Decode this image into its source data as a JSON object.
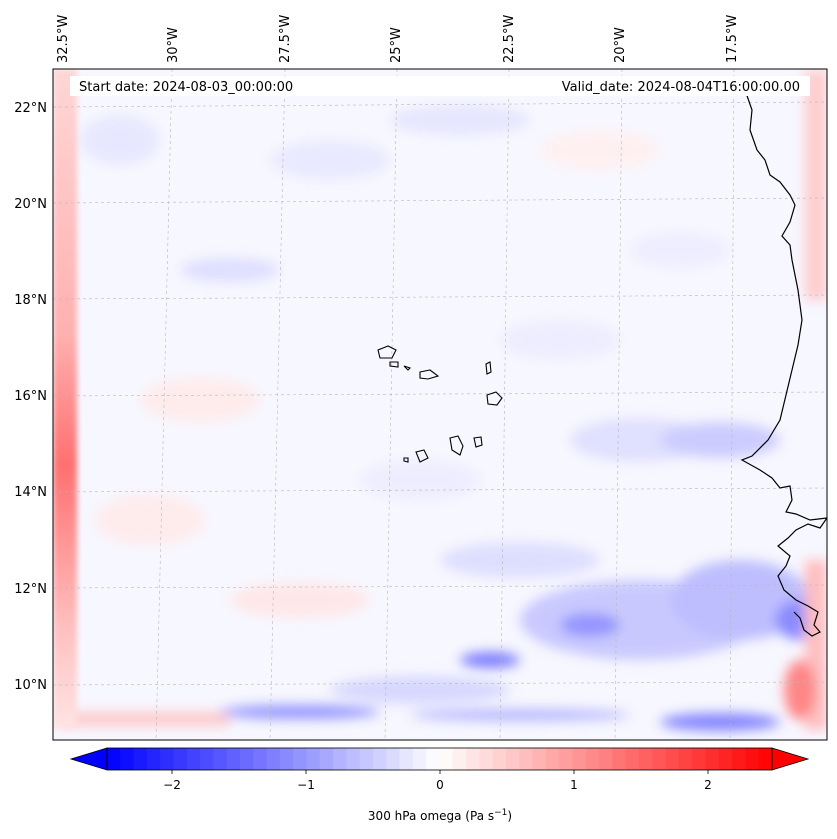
{
  "map": {
    "start_date_text": "Start date: 2024-08-03_00:00:00",
    "valid_date_text": "Valid_date: 2024-08-04T16:00:00.00",
    "lon_labels": [
      "32.5°W",
      "30°W",
      "27.5°W",
      "25°W",
      "22.5°W",
      "20°W",
      "17.5°W"
    ],
    "lat_labels": [
      "22°N",
      "20°N",
      "18°N",
      "16°N",
      "14°N",
      "12°N",
      "10°N"
    ],
    "gridlines": true
  },
  "colorbar": {
    "ticks": [
      "−2",
      "−1",
      "0",
      "1",
      "2"
    ],
    "label_main": "300 hPa omega (Pa s",
    "label_exp": "−1",
    "label_end": ")",
    "colormap": "bwr",
    "range": [
      -2.75,
      2.75
    ],
    "extend": "both"
  },
  "colors": {
    "negative": "#0000ff",
    "neutral": "#ffffff",
    "positive": "#ff0000",
    "coastline": "#000000"
  }
}
